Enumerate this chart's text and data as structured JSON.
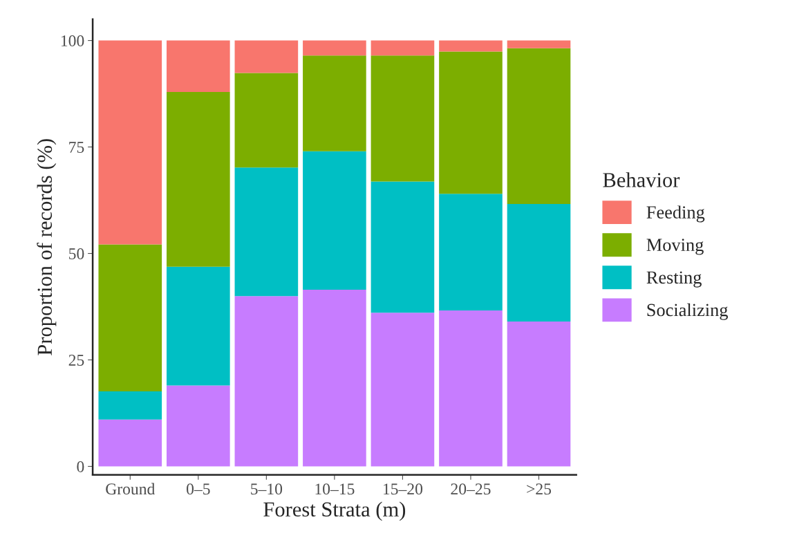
{
  "chart_data": {
    "type": "bar",
    "stacked": true,
    "xlabel": "Forest Strata (m)",
    "ylabel": "Proportion of records (%)",
    "legend_title": "Behavior",
    "legend": "right",
    "grid": false,
    "categories": [
      "Ground",
      "0–5",
      "5–10",
      "10–15",
      "15–20",
      "20–25",
      ">25"
    ],
    "ylim": [
      -2,
      105
    ],
    "yticks": [
      0,
      25,
      50,
      75,
      100
    ],
    "series": [
      {
        "name": "Socializing",
        "color": "#c77cff",
        "values": [
          11,
          19,
          40,
          41.5,
          36.1,
          36.6,
          34
        ]
      },
      {
        "name": "Resting",
        "color": "#00bfc4",
        "values": [
          6.6,
          27.9,
          30.2,
          32.5,
          30.8,
          27.4,
          27.6
        ]
      },
      {
        "name": "Moving",
        "color": "#7cae00",
        "values": [
          34.5,
          41,
          22.2,
          22.5,
          29.6,
          33.4,
          36.6
        ]
      },
      {
        "name": "Feeding",
        "color": "#f8766d",
        "values": [
          47.9,
          12.1,
          7.6,
          3.5,
          3.5,
          2.6,
          1.8
        ]
      }
    ]
  }
}
